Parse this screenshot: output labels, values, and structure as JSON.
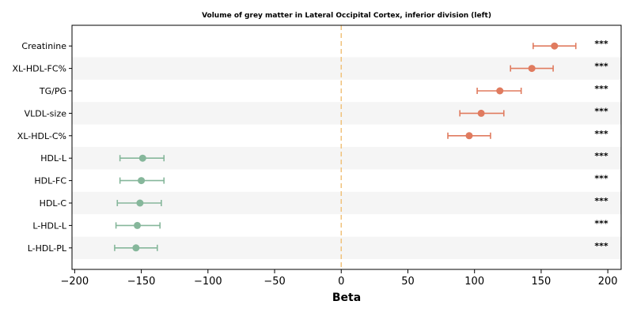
{
  "chart_data": {
    "type": "scatter",
    "title": "Volume of grey matter in Lateral Occipital Cortex, inferior division (left)",
    "xlabel": "Beta",
    "ylabel": "",
    "xlim": [
      -202,
      210
    ],
    "xticks": [
      -200,
      -150,
      -100,
      -50,
      0,
      50,
      100,
      150,
      200
    ],
    "xtick_labels": [
      "−200",
      "−150",
      "−100",
      "−50",
      "0",
      "50",
      "100",
      "150",
      "200"
    ],
    "reference_line": 0,
    "grid": false,
    "categories": [
      "Creatinine",
      "XL-HDL-FC%",
      "TG/PG",
      "VLDL-size",
      "XL-HDL-C%",
      "HDL-L",
      "HDL-FC",
      "HDL-C",
      "L-HDL-L",
      "L-HDL-PL"
    ],
    "points": [
      {
        "label": "Creatinine",
        "beta": 160,
        "ci_low": 144,
        "ci_high": 176,
        "sig": "***"
      },
      {
        "label": "XL-HDL-FC%",
        "beta": 143,
        "ci_low": 127,
        "ci_high": 159,
        "sig": "***"
      },
      {
        "label": "TG/PG",
        "beta": 119,
        "ci_low": 102,
        "ci_high": 135,
        "sig": "***"
      },
      {
        "label": "VLDL-size",
        "beta": 105,
        "ci_low": 89,
        "ci_high": 122,
        "sig": "***"
      },
      {
        "label": "XL-HDL-C%",
        "beta": 96,
        "ci_low": 80,
        "ci_high": 112,
        "sig": "***"
      },
      {
        "label": "HDL-L",
        "beta": -149,
        "ci_low": -166,
        "ci_high": -133,
        "sig": "***"
      },
      {
        "label": "HDL-FC",
        "beta": -150,
        "ci_low": -166,
        "ci_high": -133,
        "sig": "***"
      },
      {
        "label": "HDL-C",
        "beta": -151,
        "ci_low": -168,
        "ci_high": -135,
        "sig": "***"
      },
      {
        "label": "L-HDL-L",
        "beta": -153,
        "ci_low": -169,
        "ci_high": -136,
        "sig": "***"
      },
      {
        "label": "L-HDL-PL",
        "beta": -154,
        "ci_low": -170,
        "ci_high": -138,
        "sig": "***"
      }
    ],
    "colors": {
      "positive": "#e07b5f",
      "negative": "#86b79b",
      "reference_line": "#f0c27b",
      "band": "#f5f5f5"
    }
  }
}
